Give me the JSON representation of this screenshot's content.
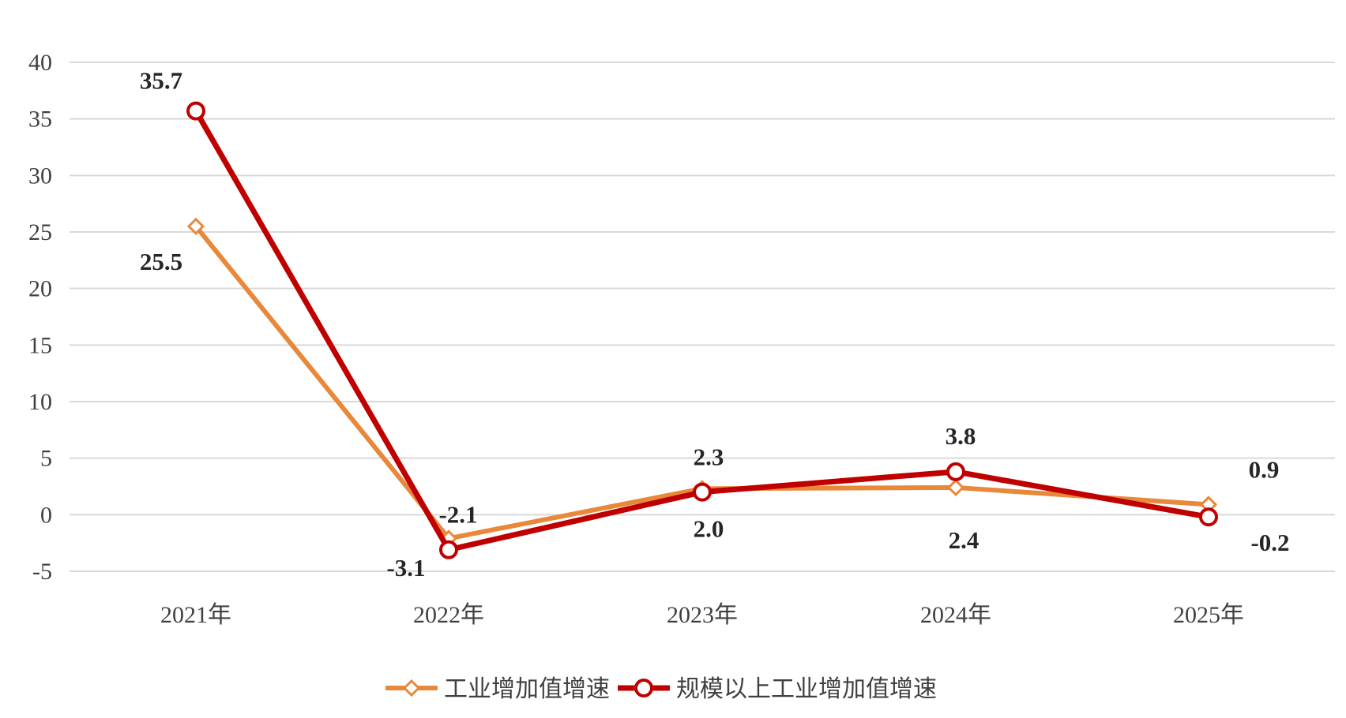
{
  "chart_data": {
    "type": "line",
    "title": "",
    "xlabel": "",
    "ylabel": "",
    "categories": [
      "2021年",
      "2022年",
      "2023年",
      "2024年",
      "2025年"
    ],
    "ylim": [
      -5,
      40
    ],
    "yticks": [
      "-5",
      "0",
      "5",
      "10",
      "15",
      "20",
      "25",
      "30",
      "35",
      "40"
    ],
    "grid": true,
    "legend_position": "bottom",
    "series": [
      {
        "name": "工业增加值增速",
        "values": [
          25.5,
          -2.1,
          2.3,
          2.4,
          0.9
        ],
        "labels": [
          "25.5",
          "-2.1",
          "2.3",
          "2.4",
          "0.9"
        ],
        "color": "#e8883a",
        "marker": "diamond"
      },
      {
        "name": "规模以上工业增加值增速",
        "values": [
          35.7,
          -3.1,
          2.0,
          3.8,
          -0.2
        ],
        "labels": [
          "35.7",
          "-3.1",
          "2.0",
          "3.8",
          "-0.2"
        ],
        "color": "#c00000",
        "marker": "circle"
      }
    ]
  }
}
